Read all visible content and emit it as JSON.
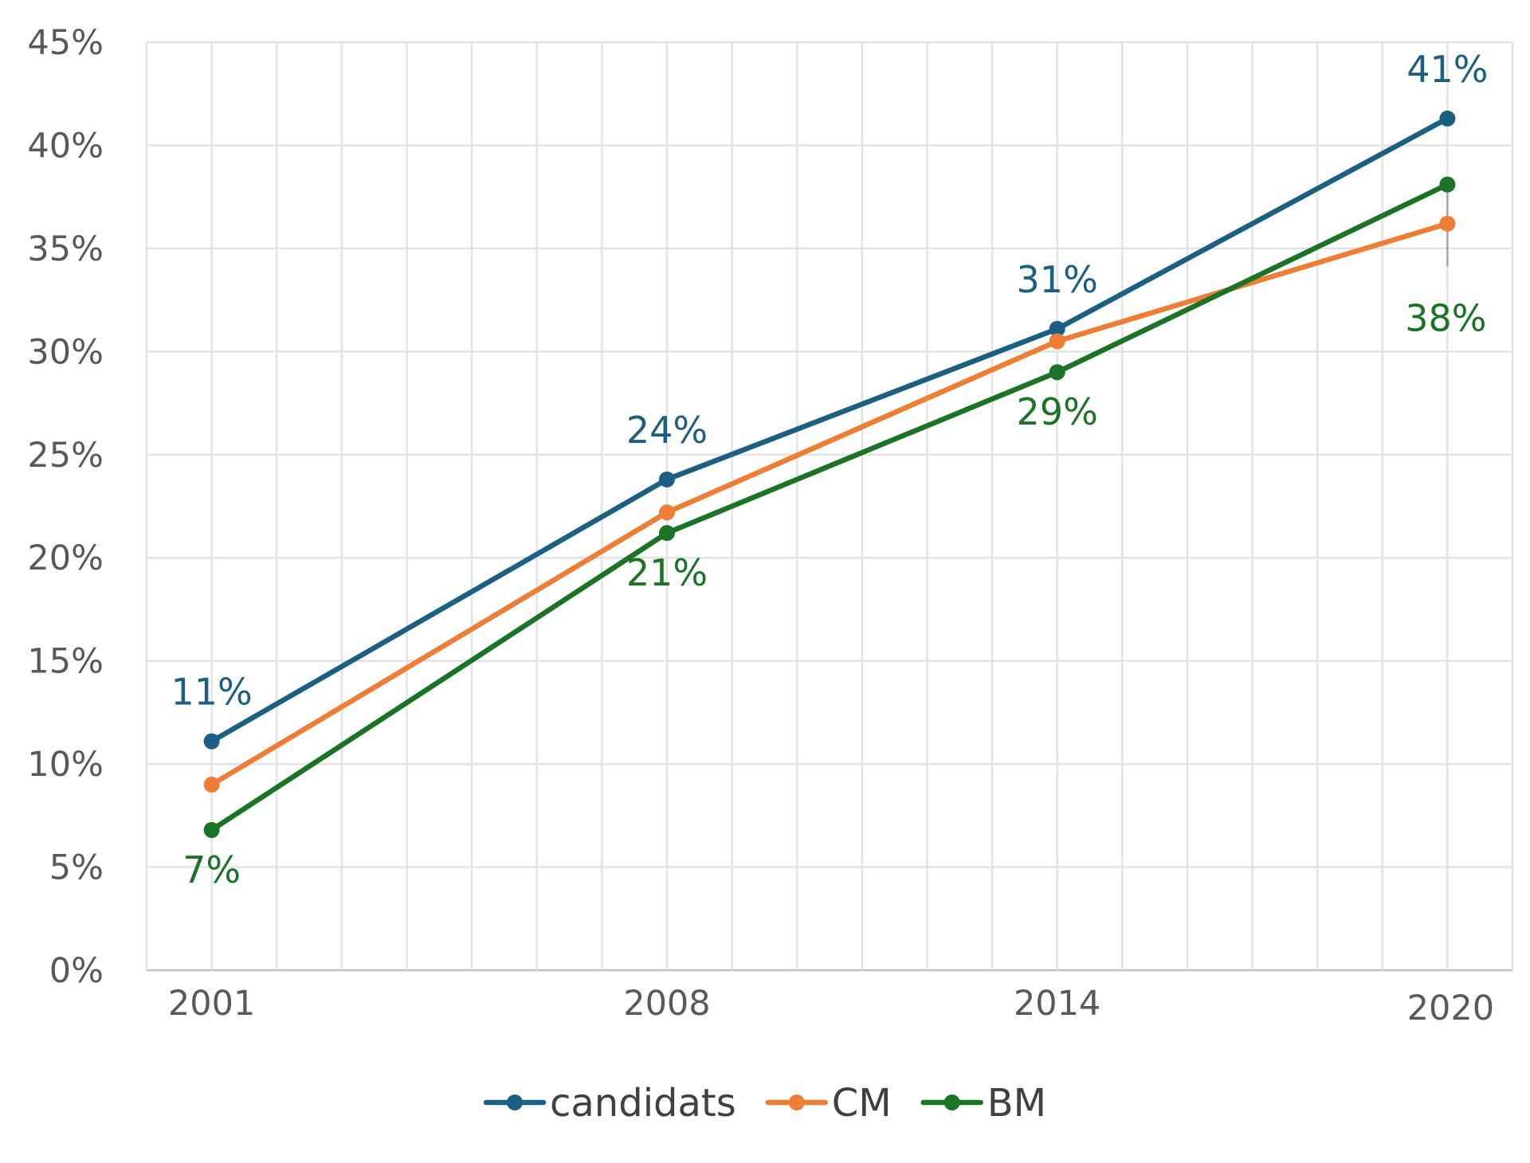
{
  "chart_data": {
    "type": "line",
    "title": "",
    "xlabel": "",
    "ylabel": "",
    "categories": [
      "2001",
      "2008",
      "2014",
      "2020"
    ],
    "x_years": [
      2001,
      2008,
      2014,
      2020
    ],
    "x_range": [
      2000,
      2021
    ],
    "ylim": [
      0,
      45
    ],
    "y_ticks": [
      "0%",
      "5%",
      "10%",
      "15%",
      "20%",
      "25%",
      "30%",
      "35%",
      "40%",
      "45%"
    ],
    "grid": true,
    "legend": "bottom",
    "series": [
      {
        "name": "candidats",
        "color": "#1b5f83",
        "values": [
          11.1,
          23.8,
          31.1,
          41.3
        ],
        "labels": [
          "11%",
          "24%",
          "31%",
          "41%"
        ]
      },
      {
        "name": "CM",
        "color": "#ee7d35",
        "values": [
          9.0,
          22.2,
          30.5,
          36.2
        ]
      },
      {
        "name": "BM",
        "color": "#1b7326",
        "values": [
          6.8,
          21.2,
          29.0,
          38.1
        ],
        "labels": [
          "7%",
          "21%",
          "29%",
          "38%"
        ]
      }
    ]
  }
}
